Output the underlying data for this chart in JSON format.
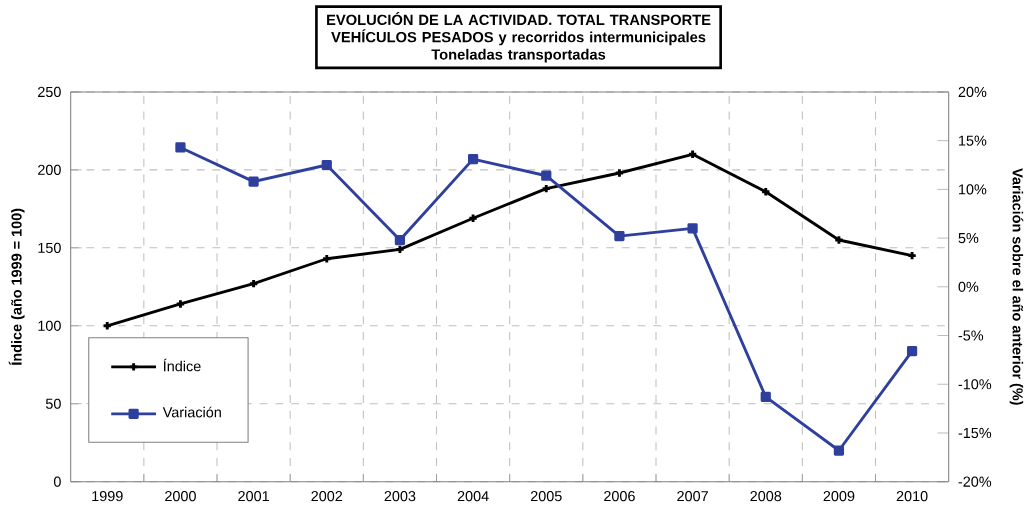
{
  "chart_data": {
    "type": "line",
    "title": "EVOLUCIÓN DE LA ACTIVIDAD. TOTAL TRANSPORTE VEHÍCULOS PESADOS y recorridos intermunicipales",
    "subtitle": "Toneladas transportadas",
    "ylabel": "Índice (año 1999 = 100)",
    "y2label": "Variación sobre el año anterior (%)",
    "categories": [
      "1999",
      "2000",
      "2001",
      "2002",
      "2003",
      "2004",
      "2005",
      "2006",
      "2007",
      "2008",
      "2009",
      "2010"
    ],
    "series": [
      {
        "name": "Índice",
        "color": "#000000",
        "marker": "cross",
        "values": [
          100,
          114,
          127,
          143,
          149,
          169,
          188,
          198,
          210,
          186,
          155,
          145
        ]
      },
      {
        "name": "Variación",
        "color": "#2e3f9e",
        "marker": "square",
        "axis": "y2",
        "values": [
          null,
          14.3,
          10.8,
          12.5,
          4.8,
          13.1,
          11.4,
          5.2,
          6.0,
          -11.3,
          -16.8,
          -6.6
        ]
      }
    ],
    "ylim": [
      0,
      250
    ],
    "yticks": [
      0,
      50,
      100,
      150,
      200,
      250
    ],
    "y2lim": [
      -20,
      20
    ],
    "y2ticks": [
      {
        "value": -20,
        "label": "-20%"
      },
      {
        "value": -15,
        "label": "-15%"
      },
      {
        "value": -10,
        "label": "-10%"
      },
      {
        "value": -5,
        "label": "-5%"
      },
      {
        "value": 0,
        "label": "0%"
      },
      {
        "value": 5,
        "label": "5%"
      },
      {
        "value": 10,
        "label": "10%"
      },
      {
        "value": 15,
        "label": "15%"
      },
      {
        "value": 20,
        "label": "20%"
      }
    ],
    "grid": true,
    "legend": "bottom left",
    "line_style": "solid"
  }
}
